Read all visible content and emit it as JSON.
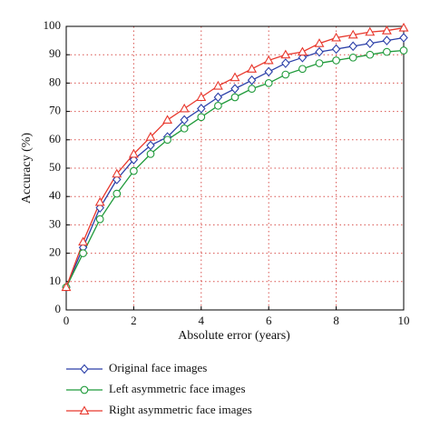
{
  "chart_data": {
    "type": "line",
    "x_label": "Absolute error (years)",
    "y_label": "Accuracy (%)",
    "x": [
      0,
      0.5,
      1,
      1.5,
      2,
      2.5,
      3,
      3.5,
      4,
      4.5,
      5,
      5.5,
      6,
      6.5,
      7,
      7.5,
      8,
      8.5,
      9,
      9.5,
      10
    ],
    "series": [
      {
        "name": "Original face images",
        "color": "#2b3fa8",
        "marker": "diamond",
        "values": [
          8,
          22,
          36,
          46,
          53,
          58,
          61,
          67,
          71,
          75,
          78,
          81,
          84,
          87,
          89,
          91,
          92,
          93,
          94,
          95,
          96
        ]
      },
      {
        "name": "Left asymmetric face images",
        "color": "#1f9a3a",
        "marker": "circle",
        "values": [
          8,
          20,
          32,
          41,
          49,
          55,
          60,
          64,
          68,
          72,
          75,
          78,
          80,
          83,
          85,
          87,
          88,
          89,
          90,
          91,
          91.5
        ]
      },
      {
        "name": "Right asymmetric face images",
        "color": "#e8372c",
        "marker": "triangle",
        "values": [
          8,
          24,
          38,
          48,
          55,
          61,
          67,
          71,
          75,
          79,
          82,
          85,
          88,
          90,
          91,
          94,
          96,
          97,
          98,
          98.5,
          99.5
        ]
      }
    ],
    "xlim": [
      0,
      10
    ],
    "xticks": [
      0,
      2,
      4,
      6,
      8,
      10
    ],
    "ylim": [
      0,
      100
    ],
    "yticks": [
      0,
      10,
      20,
      30,
      40,
      50,
      60,
      70,
      80,
      90,
      100
    ],
    "grid": true
  }
}
